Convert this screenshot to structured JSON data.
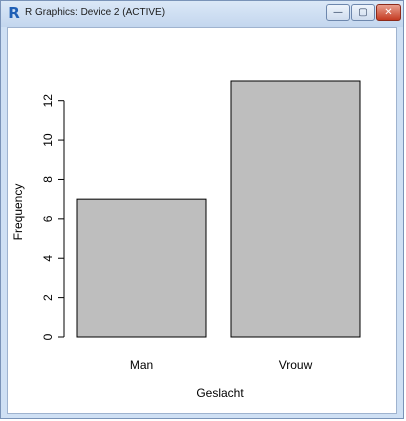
{
  "window": {
    "title": "R Graphics: Device 2 (ACTIVE)",
    "icon": "R-logo-icon",
    "controls": {
      "minimize": "—",
      "maximize": "▢",
      "close": "✕"
    }
  },
  "chart_data": {
    "type": "bar",
    "title": "",
    "categories": [
      "Man",
      "Vrouw"
    ],
    "values": [
      7,
      13
    ],
    "xlabel": "Geslacht",
    "ylabel": "Frequency",
    "yticks": [
      0,
      2,
      4,
      6,
      8,
      10,
      12
    ],
    "ylim": [
      0,
      13
    ],
    "grid": false,
    "bar_color": "#bebebe",
    "bar_border_color": "#000000"
  }
}
